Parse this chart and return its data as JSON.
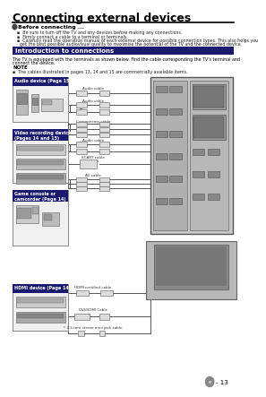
{
  "title": "Connecting external devices",
  "before_connecting_label": "Before connecting ...",
  "bullet1": "Be sure to turn off the TV and any devices before making any connections.",
  "bullet2": "Firmly connect a cable to a terminal or terminals.",
  "bullet3a": "Carefully read the operation manual of each external device for possible connection types. This also helps you",
  "bullet3b": "get the best possible audiovisual quality to maximise the potential of the TV and the connected device.",
  "intro_section_label": "Introduction to connections",
  "intro_text1": "The TV is equipped with the terminals as shown below. Find the cable corresponding the TV's terminal and",
  "intro_text2": "connect the device.",
  "note_label": "NOTE",
  "note_text": "The cables illustrated in pages 13, 14 and 15 are commercially available items.",
  "box1_title1": "Audio device (Page 15)",
  "box1_title2": "",
  "box2_title1": "Video recording device",
  "box2_title2": "(Pages 14 and 15)",
  "box3_title1": "Game console or",
  "box3_title2": "camcorder (Page 14)",
  "box4_title1": "HDMI device (Page 14)",
  "box4_title2": "",
  "cable1": "Audio cable",
  "cable2": "Audio cable",
  "cable3": "Components cable",
  "cable4": "Audio cable",
  "cable5": "SCART cable",
  "cable6": "AV cable",
  "cable7": "HDMI certified cable",
  "cable8": "DVI/HDMI Cable",
  "cable9": "* 3.5 mm stereo mini jack cable",
  "page_num": "13",
  "bg_color": "#ffffff",
  "title_line_color": "#000000",
  "intro_bar_color": "#1a1a6e",
  "box_header_color": "#1a1a6e",
  "box_header_text_color": "#ffffff",
  "box_border_color": "#888888",
  "box_bg": "#f0f0f0",
  "tv_body_color": "#cccccc",
  "tv_screen_color": "#999999",
  "cable_color": "#555555",
  "connector_color": "#dddddd",
  "text_color": "#000000",
  "note_bullet": "square"
}
